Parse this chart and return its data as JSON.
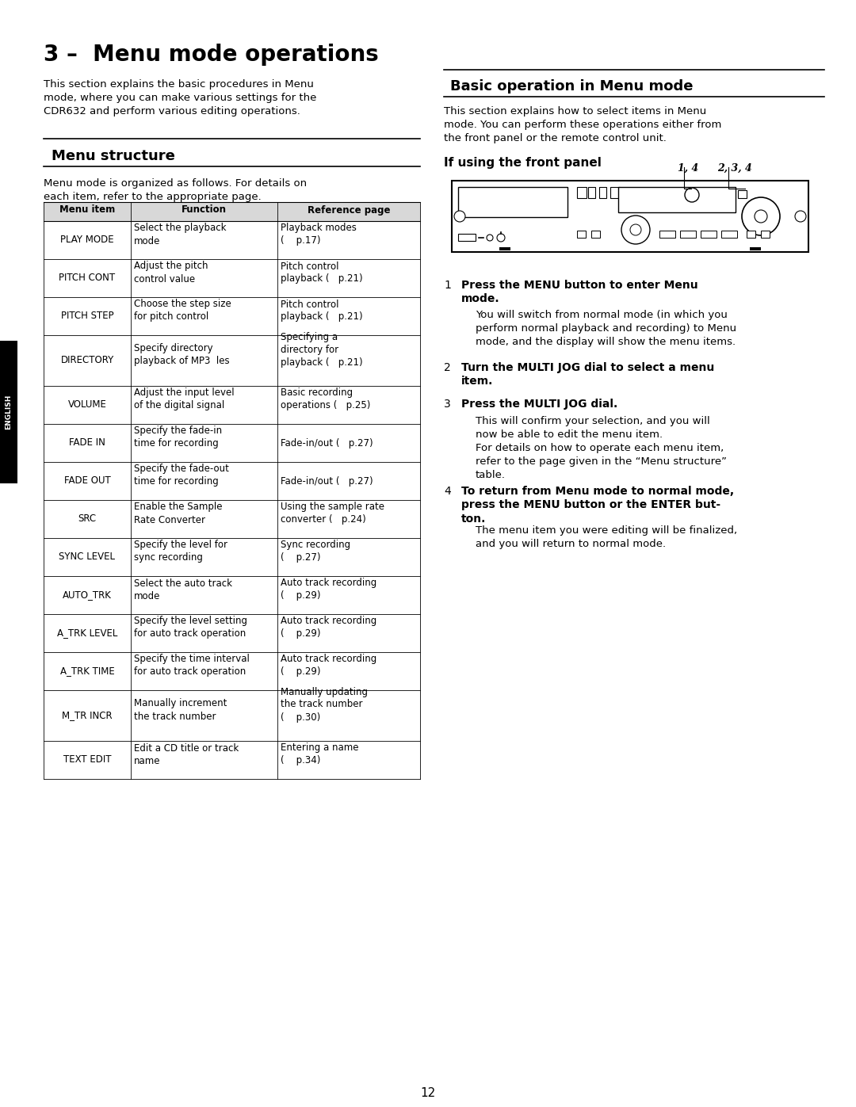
{
  "page_title": "3 –  Menu mode operations",
  "intro_text": "This section explains the basic procedures in Menu\nmode, where you can make various settings for the\nCDR632 and perform various editing operations.",
  "menu_structure_title": "Menu structure",
  "menu_intro": "Menu mode is organized as follows. For details on\neach item, refer to the appropriate page.",
  "table_headers": [
    "Menu item",
    "Function",
    "Reference page"
  ],
  "table_rows": [
    [
      "PLAY MODE",
      "Select the playback\nmode",
      "Playback modes\n(    p.17)"
    ],
    [
      "PITCH CONT",
      "Adjust the pitch\ncontrol value",
      "Pitch control\nplayback (   p.21)"
    ],
    [
      "PITCH STEP",
      "Choose the step size\nfor pitch control",
      "Pitch control\nplayback (   p.21)"
    ],
    [
      "DIRECTORY",
      "Specify directory\nplayback of MP3  les",
      "Specifying a\ndirectory for\nplayback (   p.21)"
    ],
    [
      "VOLUME",
      "Adjust the input level\nof the digital signal",
      "Basic recording\noperations (   p.25)"
    ],
    [
      "FADE IN",
      "Specify the fade-in\ntime for recording",
      "Fade-in/out (   p.27)"
    ],
    [
      "FADE OUT",
      "Specify the fade-out\ntime for recording",
      "Fade-in/out (   p.27)"
    ],
    [
      "SRC",
      "Enable the Sample\nRate Converter",
      "Using the sample rate\nconverter (   p.24)"
    ],
    [
      "SYNC LEVEL",
      "Specify the level for\nsync recording",
      "Sync recording\n(    p.27)"
    ],
    [
      "AUTO_TRK",
      "Select the auto track\nmode",
      "Auto track recording\n(    p.29)"
    ],
    [
      "A_TRK LEVEL",
      "Specify the level setting\nfor auto track operation",
      "Auto track recording\n(    p.29)"
    ],
    [
      "A_TRK TIME",
      "Specify the time interval\nfor auto track operation",
      "Auto track recording\n(    p.29)"
    ],
    [
      "M_TR INCR",
      "Manually increment\nthe track number",
      "Manually updating\nthe track number\n(    p.30)"
    ],
    [
      "TEXT EDIT",
      "Edit a CD title or track\nname",
      "Entering a name\n(    p.34)"
    ]
  ],
  "right_section_title": "Basic operation in Menu mode",
  "right_intro": "This section explains how to select items in Menu\nmode. You can perform these operations either from\nthe front panel or the remote control unit.",
  "front_panel_title": "If using the front panel",
  "label_14": "1, 4",
  "label_234": "2, 3, 4",
  "steps": [
    {
      "num": "1",
      "bold": "Press the MENU button to enter Menu\nmode.",
      "body": "You will switch from normal mode (in which you\nperform normal playback and recording) to Menu\nmode, and the display will show the menu items."
    },
    {
      "num": "2",
      "bold": "Turn the MULTI JOG dial to select a menu\nitem.",
      "body": ""
    },
    {
      "num": "3",
      "bold": "Press the MULTI JOG dial.",
      "body": "This will confirm your selection, and you will\nnow be able to edit the menu item.\nFor details on how to operate each menu item,\nrefer to the page given in the “Menu structure”\ntable."
    },
    {
      "num": "4",
      "bold": "To return from Menu mode to normal mode,\npress the MENU button or the ENTER but-\nton.",
      "body": "The menu item you were editing will be finalized,\nand you will return to normal mode."
    }
  ],
  "page_number": "12",
  "english_sidebar": "ENGLISH",
  "background_color": "#ffffff",
  "text_color": "#000000",
  "sidebar_color": "#000000"
}
